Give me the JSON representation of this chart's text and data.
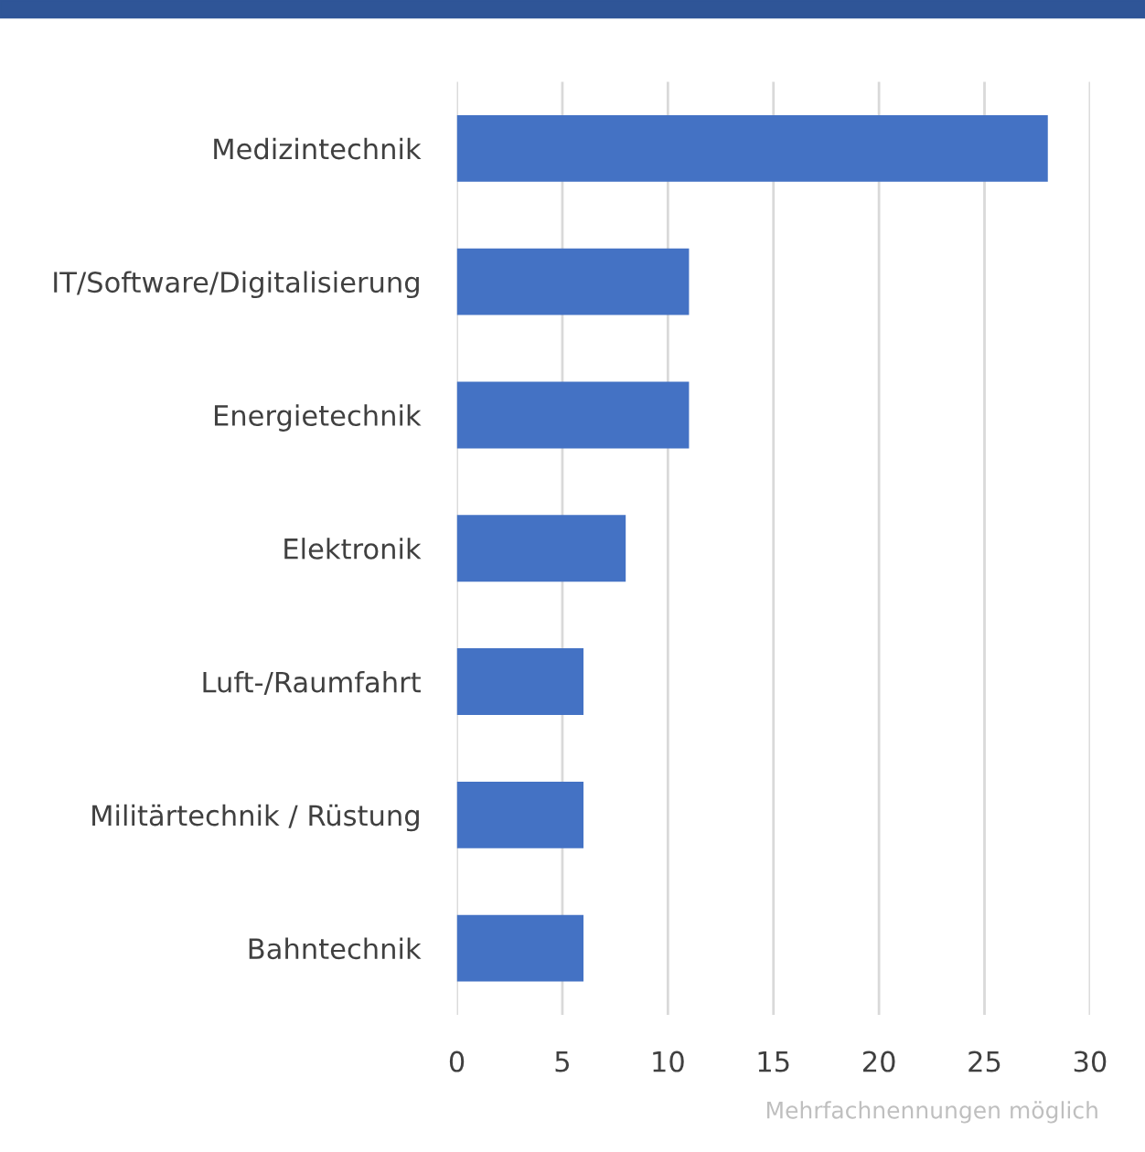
{
  "chart_data": {
    "type": "bar",
    "orientation": "horizontal",
    "categories": [
      "Medizintechnik",
      "IT/Software/Digitalisierung",
      "Energietechnik",
      "Elektronik",
      "Luft-/Raumfahrt",
      "Militärtechnik / Rüstung",
      "Bahntechnik"
    ],
    "values": [
      28,
      11,
      11,
      8,
      6,
      6,
      6
    ],
    "color": "#4472c4",
    "xlim": [
      0,
      30
    ],
    "xticks": [
      0,
      5,
      10,
      15,
      20,
      25,
      30
    ],
    "grid": "x",
    "annotations": [
      "Mehrfachnennungen möglich"
    ]
  }
}
